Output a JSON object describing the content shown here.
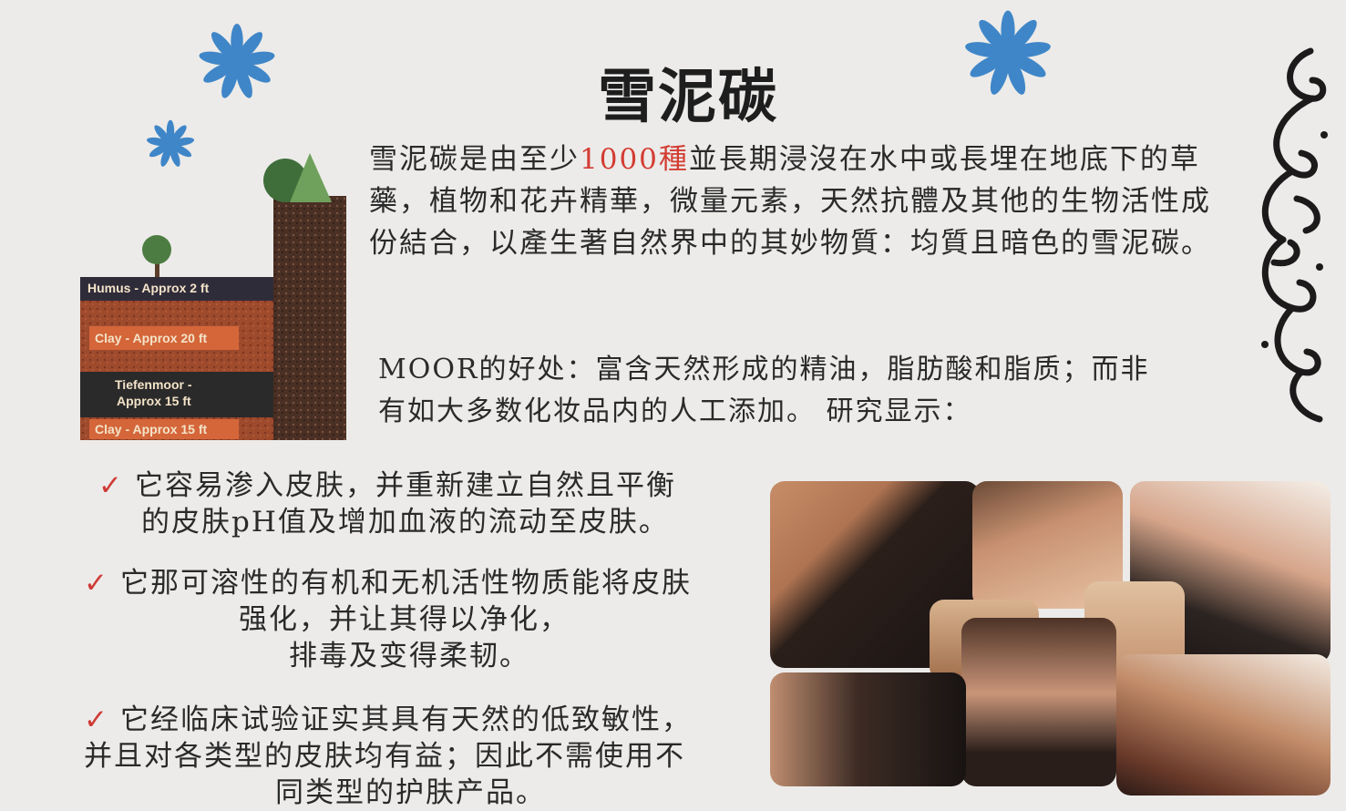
{
  "title": "雪泥碳",
  "intro": {
    "part1": "雪泥碳是由至少",
    "highlight": "1000種",
    "part2": "並長期浸沒在水中或長埋在地底下的草藥，植物和花卉精華，微量元素，天然抗體及其他的生物活性成份結合，以產生著自然界中的其妙物質：均質且暗色的雪泥碳。"
  },
  "moor": {
    "line1": "MOOR的好处：富含天然形成的精油，脂肪酸和脂质；而非",
    "line2": "有如大多数化妆品内的人工添加。 研究显示："
  },
  "benefits": [
    {
      "line1": "它容易渗入皮肤，并重新建立自然且平衡",
      "line2": "的皮肤pH值及增加血液的流动至皮肤。"
    },
    {
      "line1": "它那可溶性的有机和无机活性物质能将皮肤",
      "line2": "强化，并让其得以净化，",
      "line3": "排毒及变得柔韧。"
    },
    {
      "line1": "它经临床试验证实其具有天然的低致敏性，",
      "line2": "并且对各类型的皮肤均有益；因此不需使用不",
      "line3": "同类型的护肤产品。"
    }
  ],
  "check_symbol": "✓",
  "soil_diagram": {
    "layers": [
      "Humus - Approx 2 ft",
      "Clay - Approx 20 ft",
      "Tiefenmoor -",
      "Approx 15 ft",
      "Clay - Approx 15 ft"
    ]
  },
  "colors": {
    "accent": "#d33c32",
    "flower": "#3f86c8",
    "background": "#ecebe9"
  }
}
